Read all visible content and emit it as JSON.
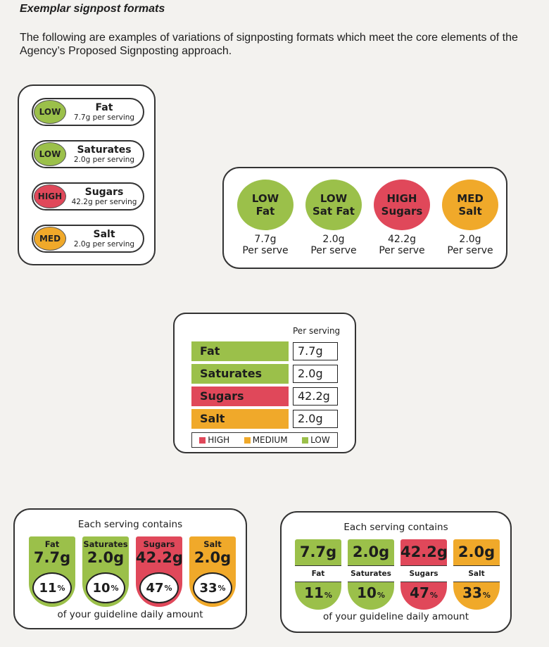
{
  "heading": "Exemplar signpost formats",
  "intro": "The following are examples of variations of signposting formats which meet the core elements of the Agency’s Proposed Signposting approach.",
  "colors": {
    "low": "#9bc04a",
    "medium": "#f0a92a",
    "high": "#e0485a"
  },
  "pill_format": [
    {
      "level": "LOW",
      "color": "green",
      "name": "Fat",
      "amount": "7.7g per serving"
    },
    {
      "level": "LOW",
      "color": "green",
      "name": "Saturates",
      "amount": "2.0g per serving"
    },
    {
      "level": "HIGH",
      "color": "red",
      "name": "Sugars",
      "amount": "42.2g per serving"
    },
    {
      "level": "MED",
      "color": "amber",
      "name": "Salt",
      "amount": "2.0g per serving"
    }
  ],
  "circle_format": [
    {
      "level": "LOW",
      "name": "Fat",
      "color": "green",
      "amount": "7.7g",
      "unit": "Per serve"
    },
    {
      "level": "LOW",
      "name": "Sat Fat",
      "color": "green",
      "amount": "2.0g",
      "unit": "Per serve"
    },
    {
      "level": "HIGH",
      "name": "Sugars",
      "color": "red",
      "amount": "42.2g",
      "unit": "Per serve"
    },
    {
      "level": "MED",
      "name": "Salt",
      "color": "amber",
      "amount": "2.0g",
      "unit": "Per serve"
    }
  ],
  "bar_format": {
    "caption": "Per serving",
    "rows": [
      {
        "name": "Fat",
        "color": "green",
        "value": "7.7g"
      },
      {
        "name": "Saturates",
        "color": "green",
        "value": "2.0g"
      },
      {
        "name": "Sugars",
        "color": "red",
        "value": "42.2g"
      },
      {
        "name": "Salt",
        "color": "amber",
        "value": "2.0g"
      }
    ],
    "legend": [
      {
        "label": "HIGH",
        "color": "red"
      },
      {
        "label": "MEDIUM",
        "color": "amber"
      },
      {
        "label": "LOW",
        "color": "green"
      }
    ]
  },
  "gda_format_a": {
    "header": "Each serving contains",
    "footer": "of your guideline daily amount",
    "items": [
      {
        "name": "Fat",
        "color": "green",
        "amount": "7.7g",
        "percent": "11"
      },
      {
        "name": "Saturates",
        "color": "green",
        "amount": "2.0g",
        "percent": "10"
      },
      {
        "name": "Sugars",
        "color": "red",
        "amount": "42.2g",
        "percent": "47"
      },
      {
        "name": "Salt",
        "color": "amber",
        "amount": "2.0g",
        "percent": "33"
      }
    ]
  },
  "gda_format_b": {
    "header": "Each serving contains",
    "footer": "of your guideline daily amount",
    "items": [
      {
        "name": "Fat",
        "color": "green",
        "amount": "7.7g",
        "percent": "11"
      },
      {
        "name": "Saturates",
        "color": "green",
        "amount": "2.0g",
        "percent": "10"
      },
      {
        "name": "Sugars",
        "color": "red",
        "amount": "42.2g",
        "percent": "47"
      },
      {
        "name": "Salt",
        "color": "amber",
        "amount": "2.0g",
        "percent": "33"
      }
    ]
  },
  "percent_sign": "%"
}
